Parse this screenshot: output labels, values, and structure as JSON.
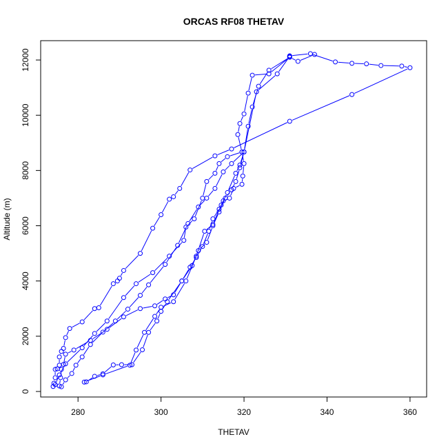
{
  "chart_data": {
    "type": "line",
    "title": "ORCAS RF08 THETAV",
    "xlabel": "THETAV",
    "ylabel": "Altitude (m)",
    "xlim": [
      271,
      364
    ],
    "ylim": [
      -200,
      12700
    ],
    "x_ticks": [
      280,
      300,
      320,
      340,
      360
    ],
    "y_ticks": [
      0,
      2000,
      4000,
      6000,
      8000,
      10000,
      12000
    ],
    "grid": false,
    "legend": "none",
    "series_color": "#0000ff",
    "marker": "open-circle",
    "series": [
      {
        "points": [
          [
            331.0,
            12150
          ],
          [
            336.0,
            12230
          ],
          [
            342.0,
            11930
          ],
          [
            346.0,
            11880
          ],
          [
            349.5,
            11860
          ],
          [
            353.0,
            11800
          ],
          [
            358.0,
            11780
          ],
          [
            360.0,
            11720
          ],
          [
            346.0,
            10750
          ],
          [
            331.0,
            9780
          ],
          [
            317.0,
            8780
          ],
          [
            313.0,
            8530
          ],
          [
            307.0,
            8020
          ],
          [
            304.5,
            7350
          ],
          [
            303.0,
            7050
          ],
          [
            302.0,
            6960
          ],
          [
            300.0,
            6400
          ],
          [
            298.0,
            5910
          ],
          [
            295.0,
            5000
          ],
          [
            291.0,
            4380
          ],
          [
            290.0,
            4100
          ],
          [
            289.5,
            4000
          ],
          [
            288.5,
            3900
          ],
          [
            285.0,
            3030
          ],
          [
            284.0,
            3000
          ],
          [
            281.0,
            2520
          ],
          [
            278.0,
            2280
          ],
          [
            277.0,
            1950
          ],
          [
            276.5,
            1560
          ],
          [
            276.0,
            1450
          ],
          [
            275.5,
            1250
          ],
          [
            275.5,
            950
          ],
          [
            275.0,
            820
          ],
          [
            274.5,
            800
          ],
          [
            274.5,
            500
          ],
          [
            274.2,
            300
          ],
          [
            274.0,
            180
          ]
        ]
      },
      {
        "points": [
          [
            276.0,
            170
          ],
          [
            277.0,
            420
          ],
          [
            278.5,
            650
          ],
          [
            279.5,
            950
          ],
          [
            281.0,
            1250
          ],
          [
            283.0,
            1700
          ],
          [
            286.0,
            2150
          ],
          [
            289.0,
            2550
          ],
          [
            292.0,
            2980
          ],
          [
            295.0,
            3480
          ],
          [
            297.0,
            3860
          ],
          [
            301.0,
            4600
          ],
          [
            304.0,
            5290
          ],
          [
            306.5,
            6080
          ],
          [
            309.0,
            6680
          ],
          [
            311.0,
            7000
          ],
          [
            313.0,
            7350
          ],
          [
            315.0,
            7950
          ],
          [
            317.0,
            8250
          ],
          [
            320.0,
            8670
          ],
          [
            323.0,
            10850
          ],
          [
            328.0,
            11500
          ],
          [
            331.0,
            12130
          ]
        ]
      },
      {
        "points": [
          [
            282.0,
            350
          ],
          [
            284.0,
            550
          ],
          [
            286.0,
            640
          ],
          [
            288.5,
            960
          ],
          [
            290.5,
            970
          ],
          [
            293.0,
            970
          ],
          [
            295.5,
            1510
          ],
          [
            297.0,
            2140
          ],
          [
            299.0,
            2550
          ],
          [
            300.0,
            2900
          ],
          [
            301.5,
            3250
          ],
          [
            305.0,
            4000
          ],
          [
            307.5,
            4560
          ],
          [
            309.0,
            5100
          ],
          [
            311.0,
            5400
          ],
          [
            312.5,
            6000
          ],
          [
            314.0,
            6500
          ],
          [
            315.5,
            7000
          ],
          [
            317.0,
            7300
          ],
          [
            318.0,
            7600
          ],
          [
            319.0,
            8100
          ],
          [
            320.0,
            8670
          ],
          [
            321.0,
            9600
          ],
          [
            322.0,
            10300
          ],
          [
            323.5,
            11050
          ],
          [
            326.0,
            11630
          ],
          [
            331.0,
            12100
          ],
          [
            333.0,
            11950
          ],
          [
            337.0,
            12200
          ]
        ]
      },
      {
        "points": [
          [
            275.5,
            200
          ],
          [
            275.8,
            500
          ],
          [
            276.0,
            800
          ],
          [
            276.5,
            980
          ],
          [
            277.0,
            1350
          ],
          [
            279.0,
            1500
          ],
          [
            283.0,
            1850
          ],
          [
            287.0,
            2250
          ],
          [
            291.0,
            2700
          ],
          [
            295.0,
            3000
          ],
          [
            298.5,
            3100
          ],
          [
            301.0,
            3350
          ],
          [
            303.0,
            3500
          ],
          [
            305.0,
            4000
          ],
          [
            307.0,
            4500
          ],
          [
            308.5,
            4850
          ],
          [
            310.0,
            5250
          ],
          [
            311.5,
            5800
          ],
          [
            312.5,
            6250
          ],
          [
            314.0,
            6600
          ],
          [
            315.0,
            6900
          ],
          [
            316.5,
            7000
          ],
          [
            317.5,
            7350
          ],
          [
            319.5,
            7500
          ],
          [
            319.7,
            7800
          ],
          [
            320.0,
            8250
          ],
          [
            319.5,
            8670
          ],
          [
            318.5,
            9300
          ],
          [
            319.0,
            9700
          ],
          [
            320.0,
            10050
          ],
          [
            321.0,
            10800
          ],
          [
            322.0,
            11450
          ],
          [
            326.0,
            11500
          ],
          [
            331.0,
            12100
          ]
        ]
      },
      {
        "points": [
          [
            281.5,
            340
          ],
          [
            286.0,
            600
          ],
          [
            292.5,
            950
          ],
          [
            294.0,
            1500
          ],
          [
            296.0,
            2140
          ],
          [
            298.5,
            2720
          ],
          [
            300.0,
            3050
          ],
          [
            303.0,
            3250
          ],
          [
            306.0,
            4000
          ],
          [
            308.5,
            4900
          ],
          [
            310.5,
            5800
          ],
          [
            312.5,
            6050
          ],
          [
            314.5,
            6750
          ],
          [
            316.0,
            7200
          ],
          [
            318.0,
            7900
          ],
          [
            319.0,
            8200
          ],
          [
            320.0,
            8670
          ]
        ]
      },
      {
        "points": [
          [
            274.5,
            250
          ],
          [
            275.5,
            600
          ],
          [
            277.0,
            1000
          ],
          [
            281.0,
            1580
          ],
          [
            284.0,
            2100
          ],
          [
            287.0,
            2550
          ],
          [
            291.0,
            3400
          ],
          [
            294.0,
            3900
          ],
          [
            298.0,
            4300
          ],
          [
            302.0,
            4900
          ],
          [
            305.5,
            5470
          ],
          [
            306.0,
            5950
          ],
          [
            308.0,
            6250
          ],
          [
            310.0,
            7000
          ],
          [
            311.0,
            7600
          ],
          [
            313.0,
            7900
          ],
          [
            314.0,
            8250
          ],
          [
            316.0,
            8500
          ],
          [
            319.5,
            8670
          ]
        ]
      }
    ]
  }
}
